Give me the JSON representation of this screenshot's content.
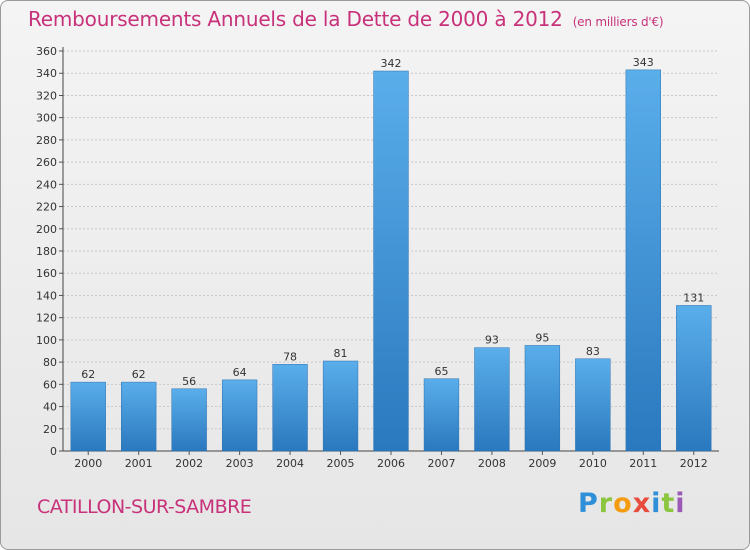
{
  "title": "Remboursements Annuels de la Dette de 2000 à 2012",
  "unit": "(en milliers d'€)",
  "commune": "CATILLON-SUR-SAMBRE",
  "logo": [
    "P",
    "r",
    "o",
    "x",
    "i",
    "t",
    "i"
  ],
  "colors": {
    "bar": "#4a9de0",
    "bar_dark": "#2a78be",
    "title": "#c8327a"
  },
  "chart_data": {
    "type": "bar",
    "categories": [
      "2000",
      "2001",
      "2002",
      "2003",
      "2004",
      "2005",
      "2006",
      "2007",
      "2008",
      "2009",
      "2010",
      "2011",
      "2012"
    ],
    "values": [
      62,
      62,
      56,
      64,
      78,
      81,
      342,
      65,
      93,
      95,
      83,
      343,
      131
    ],
    "ylim": [
      0,
      360
    ],
    "yticks": [
      0,
      20,
      40,
      60,
      80,
      100,
      120,
      140,
      160,
      180,
      200,
      220,
      240,
      260,
      280,
      300,
      320,
      340,
      360
    ],
    "grid": true
  }
}
